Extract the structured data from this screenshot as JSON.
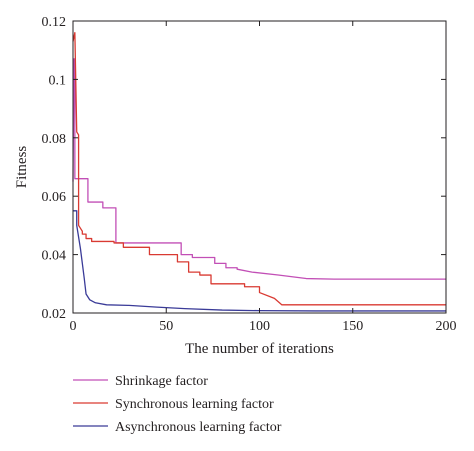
{
  "chart_data": {
    "type": "line",
    "xlabel": "The number of iterations",
    "ylabel": "Fitness",
    "xlim": [
      0,
      200
    ],
    "ylim": [
      0.02,
      0.12
    ],
    "xticks": [
      0,
      50,
      100,
      150,
      200
    ],
    "yticks": [
      0.02,
      0.04,
      0.06,
      0.08,
      0.1,
      0.12
    ],
    "ytick_labels": [
      "0.02",
      "0.04",
      "0.06",
      "0.08",
      "0.1",
      "0.12"
    ],
    "grid": false,
    "legend_position": "bottom",
    "series": [
      {
        "name": "Shrinkage factor",
        "color": "#c24fb6",
        "x": [
          0,
          0.5,
          1,
          1,
          2,
          2,
          8,
          8,
          16,
          16,
          23,
          23,
          32,
          32,
          58,
          58,
          64,
          64,
          76,
          76,
          82,
          82,
          88,
          88,
          96,
          110,
          125,
          140,
          160,
          200
        ],
        "y": [
          0.065,
          0.107,
          0.107,
          0.066,
          0.066,
          0.066,
          0.066,
          0.058,
          0.058,
          0.056,
          0.056,
          0.044,
          0.044,
          0.044,
          0.044,
          0.04,
          0.04,
          0.039,
          0.039,
          0.037,
          0.037,
          0.0355,
          0.0355,
          0.035,
          0.034,
          0.033,
          0.0318,
          0.0316,
          0.0316,
          0.0316
        ]
      },
      {
        "name": "Synchronous learning factor",
        "color": "#d93a32",
        "x": [
          0,
          1,
          2,
          2,
          3,
          3,
          4,
          5,
          5,
          7,
          7,
          10,
          10,
          22,
          22,
          27,
          27,
          41,
          41,
          56,
          56,
          62,
          62,
          68,
          68,
          74,
          74,
          92,
          92,
          100,
          100,
          108,
          112,
          200
        ],
        "y": [
          0.113,
          0.116,
          0.082,
          0.082,
          0.081,
          0.05,
          0.049,
          0.048,
          0.047,
          0.047,
          0.0455,
          0.0455,
          0.0445,
          0.0445,
          0.044,
          0.044,
          0.0425,
          0.0425,
          0.04,
          0.04,
          0.0375,
          0.0375,
          0.034,
          0.034,
          0.033,
          0.033,
          0.03,
          0.03,
          0.029,
          0.029,
          0.027,
          0.025,
          0.0228,
          0.0228
        ]
      },
      {
        "name": "Asynchronous learning factor",
        "color": "#3a3b98",
        "x": [
          0,
          2,
          2,
          4,
          6,
          7,
          9,
          12,
          18,
          30,
          45,
          60,
          80,
          100,
          130,
          160,
          200
        ],
        "y": [
          0.055,
          0.055,
          0.05,
          0.042,
          0.032,
          0.0265,
          0.0245,
          0.0235,
          0.0228,
          0.0226,
          0.022,
          0.0215,
          0.021,
          0.0208,
          0.0207,
          0.0207,
          0.0207
        ]
      }
    ]
  }
}
